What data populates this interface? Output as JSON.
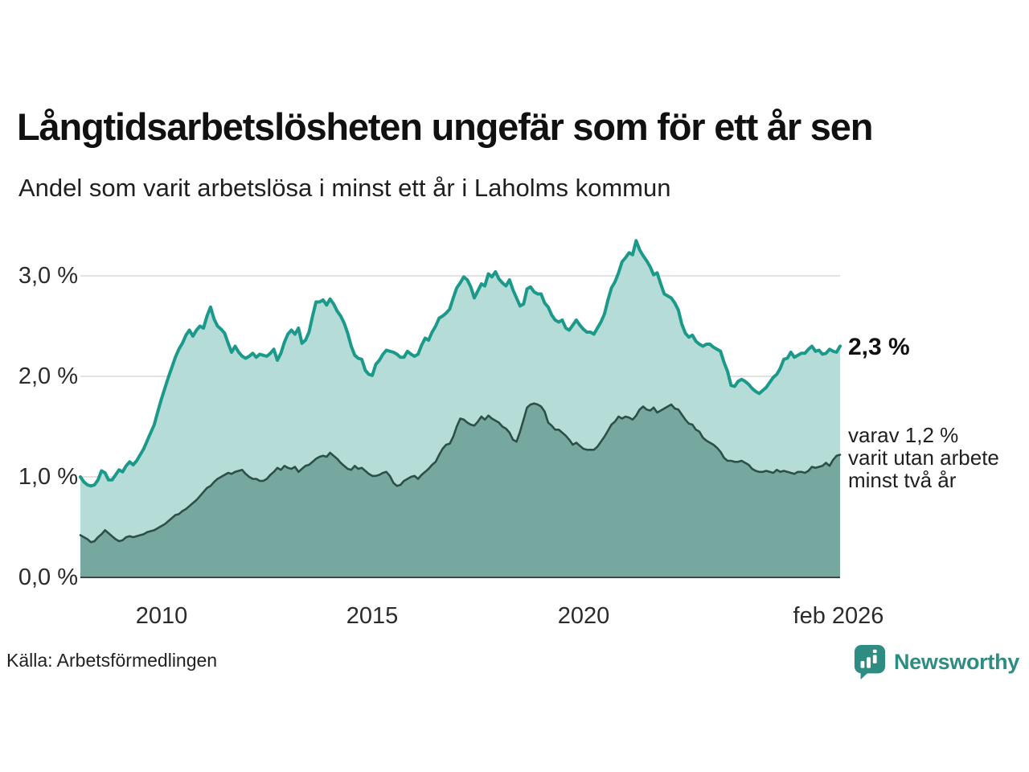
{
  "header": {
    "title": "Långtidsarbetslösheten ungefär som för ett år sen",
    "subtitle": "Andel som varit arbetslösa i minst ett år i Laholms kommun"
  },
  "chart_data": {
    "type": "area",
    "title": "Långtidsarbetslösheten ungefär som för ett år sen",
    "subtitle": "Andel som varit arbetslösa i minst ett år i Laholms kommun",
    "unit": "percent of workforce",
    "x_start": "2008-02",
    "x_end": "2026-02",
    "frequency": "monthly",
    "ylim": [
      0,
      3.5
    ],
    "grid": "horizontal",
    "legend_position": "right-of-line-end",
    "x_ticks": [
      {
        "label": "2010",
        "month_index": 23
      },
      {
        "label": "2015",
        "month_index": 83
      },
      {
        "label": "2020",
        "month_index": 143
      },
      {
        "label": "feb 2026",
        "month_index": 216
      }
    ],
    "y_ticks": [
      {
        "label": "0,0 %",
        "value": 0
      },
      {
        "label": "1,0 %",
        "value": 1
      },
      {
        "label": "2,0 %",
        "value": 2
      },
      {
        "label": "3,0 %",
        "value": 3
      }
    ],
    "colors": {
      "total_line": "#1b9a8b",
      "total_fill": "#b5dcd7",
      "two_year_line": "#2d4f49",
      "two_year_fill": "#77a8a0",
      "gridline": "#d9d9d9",
      "baseline": "#444444"
    },
    "annotations": {
      "latest_total": "2,3 %",
      "secondary_lines": [
        "varav 1,2 %",
        "varit utan arbete",
        "minst två år"
      ]
    },
    "series": [
      {
        "name": "arbetslösa minst ett år",
        "latest_value": 2.3,
        "values": [
          1.0,
          0.95,
          0.92,
          0.91,
          0.92,
          0.97,
          1.06,
          1.04,
          0.97,
          0.97,
          1.02,
          1.07,
          1.05,
          1.11,
          1.15,
          1.12,
          1.16,
          1.22,
          1.28,
          1.36,
          1.44,
          1.52,
          1.65,
          1.77,
          1.88,
          1.99,
          2.09,
          2.19,
          2.27,
          2.33,
          2.41,
          2.46,
          2.4,
          2.46,
          2.5,
          2.48,
          2.6,
          2.69,
          2.57,
          2.5,
          2.47,
          2.43,
          2.33,
          2.24,
          2.3,
          2.24,
          2.2,
          2.18,
          2.2,
          2.23,
          2.19,
          2.22,
          2.21,
          2.2,
          2.23,
          2.27,
          2.16,
          2.23,
          2.34,
          2.42,
          2.46,
          2.42,
          2.48,
          2.33,
          2.36,
          2.44,
          2.6,
          2.74,
          2.74,
          2.76,
          2.71,
          2.77,
          2.72,
          2.65,
          2.6,
          2.53,
          2.43,
          2.3,
          2.21,
          2.18,
          2.17,
          2.06,
          2.02,
          2.01,
          2.12,
          2.16,
          2.22,
          2.26,
          2.25,
          2.24,
          2.22,
          2.19,
          2.19,
          2.25,
          2.22,
          2.2,
          2.22,
          2.31,
          2.38,
          2.36,
          2.44,
          2.5,
          2.58,
          2.6,
          2.63,
          2.67,
          2.78,
          2.88,
          2.93,
          2.99,
          2.96,
          2.89,
          2.78,
          2.85,
          2.92,
          2.9,
          3.02,
          2.99,
          3.04,
          2.97,
          2.93,
          2.9,
          2.96,
          2.86,
          2.78,
          2.7,
          2.72,
          2.87,
          2.89,
          2.84,
          2.82,
          2.82,
          2.73,
          2.69,
          2.61,
          2.56,
          2.54,
          2.56,
          2.48,
          2.46,
          2.51,
          2.56,
          2.51,
          2.47,
          2.44,
          2.44,
          2.42,
          2.48,
          2.54,
          2.62,
          2.76,
          2.88,
          2.94,
          3.03,
          3.14,
          3.18,
          3.23,
          3.21,
          3.35,
          3.26,
          3.2,
          3.15,
          3.09,
          3.01,
          3.03,
          2.92,
          2.82,
          2.8,
          2.78,
          2.73,
          2.66,
          2.52,
          2.43,
          2.39,
          2.41,
          2.35,
          2.32,
          2.3,
          2.32,
          2.32,
          2.29,
          2.27,
          2.25,
          2.14,
          2.05,
          1.91,
          1.9,
          1.95,
          1.97,
          1.95,
          1.92,
          1.88,
          1.85,
          1.83,
          1.86,
          1.89,
          1.94,
          1.99,
          2.02,
          2.08,
          2.17,
          2.18,
          2.24,
          2.19,
          2.21,
          2.23,
          2.23,
          2.27,
          2.3,
          2.25,
          2.26,
          2.22,
          2.23,
          2.27,
          2.25,
          2.24,
          2.3
        ]
      },
      {
        "name": "varav arbetslösa minst två år",
        "latest_value": 1.2,
        "values": [
          0.42,
          0.4,
          0.38,
          0.35,
          0.36,
          0.4,
          0.43,
          0.47,
          0.44,
          0.41,
          0.38,
          0.36,
          0.37,
          0.4,
          0.41,
          0.4,
          0.41,
          0.42,
          0.43,
          0.45,
          0.46,
          0.47,
          0.49,
          0.51,
          0.53,
          0.56,
          0.59,
          0.62,
          0.63,
          0.66,
          0.68,
          0.71,
          0.74,
          0.77,
          0.81,
          0.85,
          0.89,
          0.91,
          0.95,
          0.98,
          1.0,
          1.02,
          1.04,
          1.03,
          1.05,
          1.06,
          1.07,
          1.03,
          1.0,
          0.98,
          0.98,
          0.96,
          0.96,
          0.98,
          1.02,
          1.05,
          1.09,
          1.07,
          1.11,
          1.09,
          1.08,
          1.1,
          1.05,
          1.08,
          1.11,
          1.12,
          1.15,
          1.18,
          1.2,
          1.21,
          1.2,
          1.24,
          1.21,
          1.18,
          1.14,
          1.11,
          1.08,
          1.07,
          1.11,
          1.08,
          1.09,
          1.06,
          1.03,
          1.01,
          1.01,
          1.02,
          1.04,
          1.05,
          1.01,
          0.94,
          0.91,
          0.92,
          0.96,
          0.98,
          1.0,
          1.01,
          0.98,
          1.02,
          1.05,
          1.08,
          1.12,
          1.15,
          1.22,
          1.28,
          1.32,
          1.33,
          1.4,
          1.5,
          1.58,
          1.57,
          1.54,
          1.52,
          1.51,
          1.55,
          1.6,
          1.57,
          1.61,
          1.58,
          1.56,
          1.54,
          1.5,
          1.48,
          1.44,
          1.37,
          1.35,
          1.45,
          1.57,
          1.69,
          1.72,
          1.73,
          1.72,
          1.7,
          1.65,
          1.54,
          1.51,
          1.47,
          1.47,
          1.44,
          1.41,
          1.37,
          1.32,
          1.34,
          1.31,
          1.28,
          1.27,
          1.27,
          1.27,
          1.3,
          1.35,
          1.4,
          1.46,
          1.52,
          1.55,
          1.6,
          1.58,
          1.6,
          1.59,
          1.57,
          1.61,
          1.67,
          1.7,
          1.67,
          1.66,
          1.69,
          1.64,
          1.66,
          1.68,
          1.7,
          1.72,
          1.68,
          1.67,
          1.62,
          1.57,
          1.53,
          1.52,
          1.47,
          1.45,
          1.39,
          1.36,
          1.34,
          1.32,
          1.29,
          1.25,
          1.19,
          1.16,
          1.16,
          1.15,
          1.15,
          1.16,
          1.14,
          1.12,
          1.08,
          1.06,
          1.05,
          1.05,
          1.06,
          1.05,
          1.04,
          1.07,
          1.05,
          1.06,
          1.05,
          1.04,
          1.03,
          1.05,
          1.05,
          1.04,
          1.06,
          1.1,
          1.09,
          1.1,
          1.11,
          1.14,
          1.11,
          1.17,
          1.21,
          1.22
        ]
      }
    ]
  },
  "source": {
    "text": "Källa: Arbetsförmedlingen"
  },
  "logo": {
    "text": "Newsworthy",
    "color": "#2f8c82",
    "icon": "newsworthy-speech-bubble-bar-chart-icon"
  }
}
